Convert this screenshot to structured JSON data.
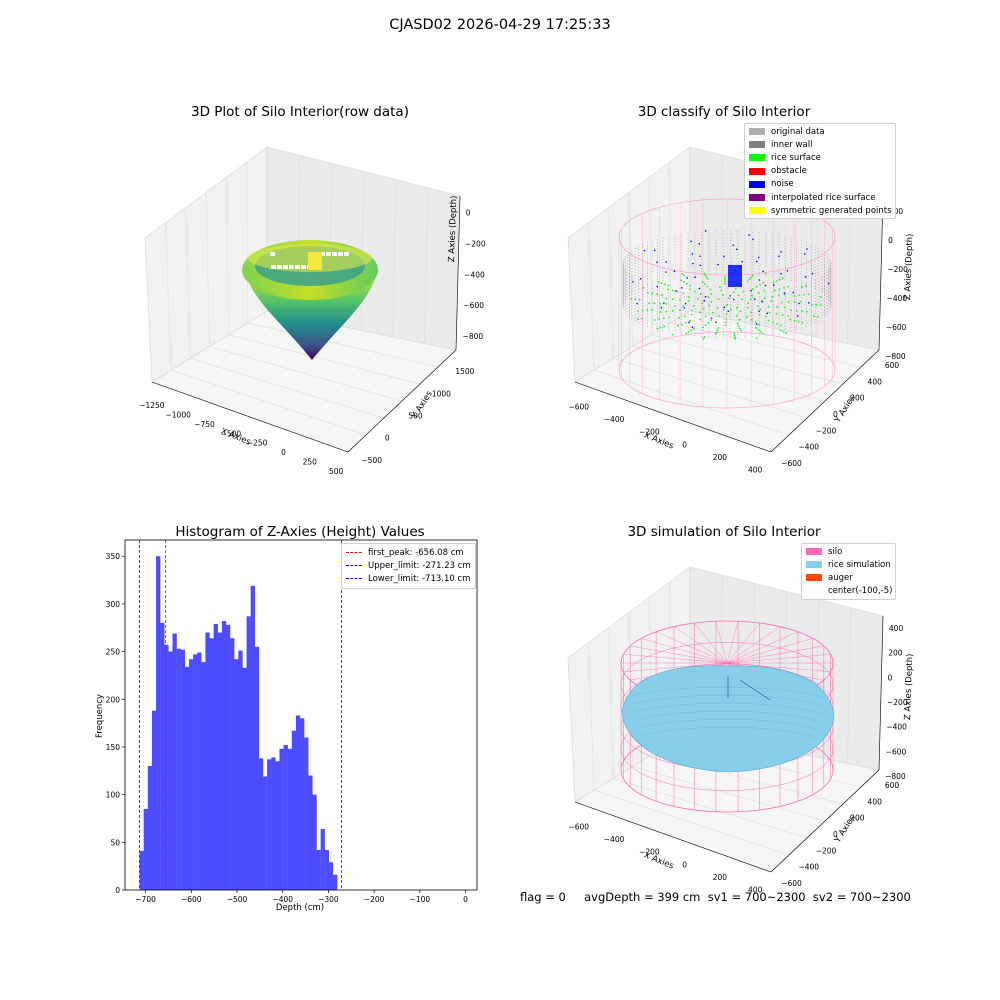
{
  "suptitle": "CJASD02 2026-04-29 17:25:33",
  "footer": "flag = 0     avgDepth = 399 cm  sv1 = 700~2300  sv2 = 700~2300",
  "colors": {
    "bar": "#4d4dff",
    "peak_line": "#ff0000",
    "limit_line": "#0000ff",
    "silo": "#ff69b4",
    "rice": "#87ceeb",
    "auger": "#ff4500"
  },
  "panels": {
    "raw": {
      "title": "3D Plot of Silo Interior(row data)",
      "xlabel": "X Axies",
      "ylabel": "Y Axies",
      "zlabel": "Z Axies (Depth)",
      "xticks": [
        "−1250",
        "−1000",
        "−750",
        "−500",
        "−250",
        "0",
        "250",
        "500"
      ],
      "yticks": [
        "1500",
        "1000",
        "500",
        "0",
        "−500"
      ],
      "zticks": [
        "0",
        "−200",
        "−400",
        "−600",
        "−800"
      ]
    },
    "classify": {
      "title": "3D classify of Silo Interior",
      "xlabel": "X Axies",
      "ylabel": "Y Axies",
      "zlabel": "Z Axies (Depth)",
      "xticks": [
        "−600",
        "−400",
        "−200",
        "0",
        "200",
        "400"
      ],
      "yticks": [
        "600",
        "400",
        "200",
        "0",
        "−200",
        "−400",
        "−600"
      ],
      "zticks": [
        "200",
        "0",
        "−200",
        "−400",
        "−600",
        "−800"
      ],
      "legend": [
        {
          "label": "original data",
          "color": "#b0b0b0"
        },
        {
          "label": "inner wall",
          "color": "#808080"
        },
        {
          "label": "rice surface",
          "color": "#00ff00"
        },
        {
          "label": "obstacle",
          "color": "#ff0000"
        },
        {
          "label": "noise",
          "color": "#0000ff"
        },
        {
          "label": "interpolated rice surface",
          "color": "#800080"
        },
        {
          "label": "symmetric generated points",
          "color": "#ffff00"
        }
      ]
    },
    "simulation": {
      "title": "3D simulation of Silo Interior",
      "xlabel": "X Axies",
      "ylabel": "Y Axies",
      "zlabel": "Z Axies (Depth)",
      "xticks": [
        "−600",
        "−400",
        "−200",
        "0",
        "200",
        "400"
      ],
      "yticks": [
        "600",
        "400",
        "200",
        "0",
        "−200",
        "−400",
        "−600"
      ],
      "zticks": [
        "400",
        "200",
        "0",
        "−200",
        "−400",
        "−600",
        "−800"
      ],
      "legend": [
        {
          "label": "silo",
          "color": "#ff69b4"
        },
        {
          "label": "rice simulation",
          "color": "#87ceeb"
        },
        {
          "label": "auger",
          "color": "#ff4500"
        },
        {
          "label": "center(-100,-5)",
          "color": ""
        }
      ]
    }
  },
  "chart_data": {
    "type": "bar",
    "title": "Histogram of Z-Axies (Height) Values",
    "xlabel": "Depth (cm)",
    "ylabel": "Frequency",
    "xlim": [
      -745,
      25
    ],
    "ylim": [
      0,
      367
    ],
    "xticks": [
      -700,
      -600,
      -500,
      -400,
      -300,
      -200,
      -100,
      0
    ],
    "yticks": [
      0,
      50,
      100,
      150,
      200,
      250,
      300,
      350
    ],
    "bin_start": -713.1,
    "bin_width": 9.0,
    "values": [
      41,
      85,
      130,
      188,
      350,
      280,
      257,
      250,
      269,
      253,
      252,
      234,
      242,
      247,
      249,
      239,
      270,
      264,
      279,
      270,
      282,
      278,
      264,
      242,
      251,
      233,
      287,
      319,
      255,
      138,
      119,
      137,
      139,
      135,
      148,
      152,
      148,
      167,
      183,
      180,
      160,
      120,
      100,
      42,
      64,
      42,
      29,
      16
    ],
    "vlines": [
      {
        "label": "first_peak: -656.08 cm",
        "x": -656.08,
        "color": "#ff0000"
      },
      {
        "label": "Upper_limit: -271.23 cm",
        "x": -271.23,
        "color": "#0000ff"
      },
      {
        "label": "Lower_limit: -713.10 cm",
        "x": -713.1,
        "color": "#0000ff"
      }
    ]
  }
}
